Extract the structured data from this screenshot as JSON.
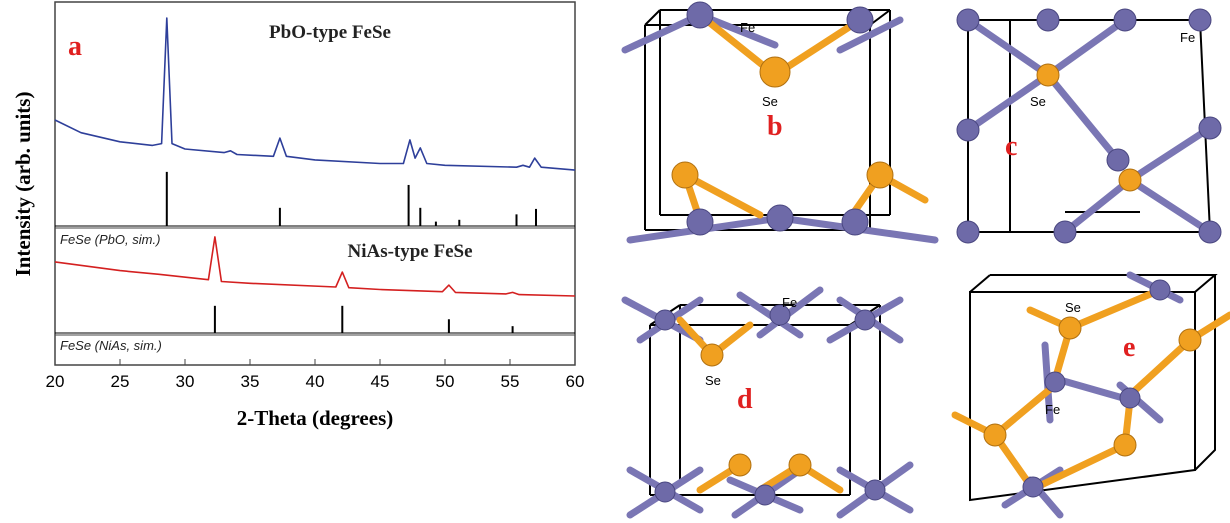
{
  "chart_data": {
    "type": "line",
    "panel_label": "a",
    "xlabel": "2-Theta (degrees)",
    "ylabel": "Intensity (arb. units)",
    "xlim": [
      20,
      60
    ],
    "xticks": [
      20,
      25,
      30,
      35,
      40,
      45,
      50,
      55,
      60
    ],
    "ylim": [
      0,
      100
    ],
    "series": [
      {
        "name": "PbO-type FeSe",
        "color": "#2e3f9a",
        "style": "line",
        "x": [
          20,
          22,
          25,
          27.5,
          28.2,
          28.6,
          29,
          30,
          33,
          33.5,
          34,
          36.8,
          37.3,
          37.8,
          40,
          45,
          46.8,
          47.3,
          47.7,
          48.1,
          48.6,
          50,
          55.5,
          56,
          56.5,
          56.9,
          57.4,
          60
        ],
        "values": [
          67.5,
          64,
          61.5,
          60.5,
          61,
          95.6,
          61,
          59.5,
          58.5,
          59,
          58,
          57.5,
          62.5,
          57.5,
          56.5,
          55.5,
          55.5,
          62,
          57,
          59.8,
          55.5,
          55,
          54.5,
          55,
          54.5,
          57,
          54.5,
          53.7
        ]
      },
      {
        "name": "FeSe (PbO, sim.)",
        "color": "#000000",
        "style": "sticks",
        "baseline": 38.3,
        "x": [
          28.6,
          37.3,
          47.2,
          48.1,
          49.3,
          51.1,
          55.5,
          57
        ],
        "values": [
          53.2,
          43.3,
          49.6,
          43.3,
          39.5,
          40,
          41.5,
          43
        ]
      },
      {
        "name": "NiAs-type FeSe",
        "color": "#d42020",
        "style": "line",
        "x": [
          20,
          25,
          28,
          31.8,
          32.3,
          32.8,
          35,
          41.6,
          42.1,
          42.6,
          45,
          49.8,
          50.3,
          50.8,
          54.7,
          55.2,
          55.7,
          60
        ],
        "values": [
          28.4,
          26,
          25,
          23.5,
          35.3,
          23,
          22.5,
          21.5,
          25.6,
          21.3,
          20.8,
          20.2,
          22,
          20,
          19.6,
          20,
          19.4,
          19
        ]
      },
      {
        "name": "FeSe (NiAs, sim.)",
        "color": "#000000",
        "style": "sticks",
        "baseline": 8.8,
        "x": [
          32.3,
          42.1,
          50.3,
          55.2
        ],
        "values": [
          16.3,
          16.3,
          12.6,
          10.7
        ]
      }
    ]
  },
  "structures": [
    {
      "label": "b",
      "atoms": [
        "Fe",
        "Se"
      ]
    },
    {
      "label": "c",
      "atoms": [
        "Se",
        "Fe"
      ]
    },
    {
      "label": "d",
      "atoms": [
        "Fe",
        "Se"
      ]
    },
    {
      "label": "e",
      "atoms": [
        "Se",
        "Fe"
      ]
    }
  ]
}
